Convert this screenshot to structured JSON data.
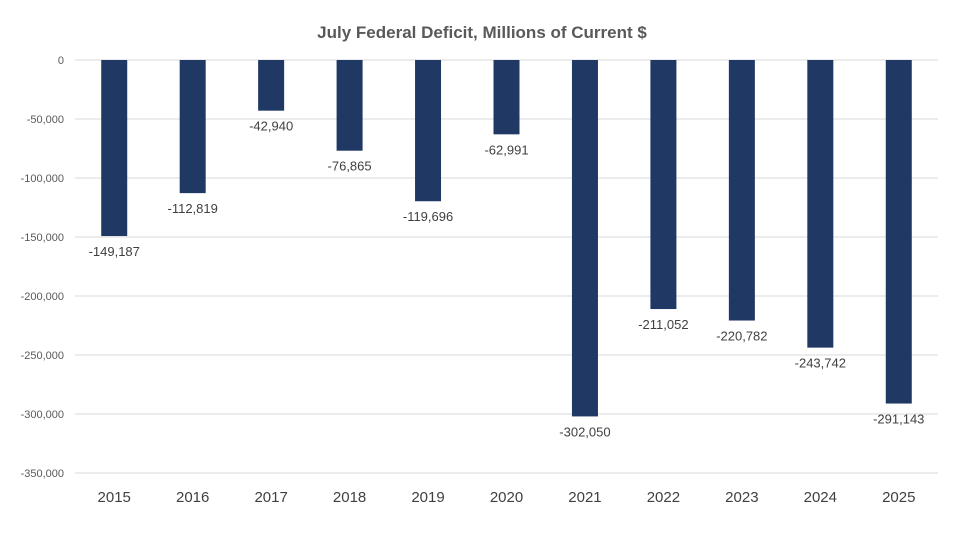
{
  "chart_data": {
    "type": "bar",
    "title": "July Federal Deficit, Millions of Current $",
    "xlabel": "",
    "ylabel": "",
    "categories": [
      "2015",
      "2016",
      "2017",
      "2018",
      "2019",
      "2020",
      "2021",
      "2022",
      "2023",
      "2024",
      "2025"
    ],
    "values": [
      -149187,
      -112819,
      -42940,
      -76865,
      -119696,
      -62991,
      -302050,
      -211052,
      -220782,
      -243742,
      -291143
    ],
    "value_labels": [
      "-149,187",
      "-112,819",
      "-42,940",
      "-76,865",
      "-119,696",
      "-62,991",
      "-302,050",
      "-211,052",
      "-220,782",
      "-243,742",
      "-291,143"
    ],
    "ylim": [
      -350000,
      0
    ],
    "yticks": [
      0,
      -50000,
      -100000,
      -150000,
      -200000,
      -250000,
      -300000,
      -350000
    ],
    "ytick_labels": [
      "0",
      "-50,000",
      "-100,000",
      "-150,000",
      "-200,000",
      "-250,000",
      "-300,000",
      "-350,000"
    ],
    "grid": true,
    "legend": "none",
    "bar_color": "#1f3864"
  }
}
